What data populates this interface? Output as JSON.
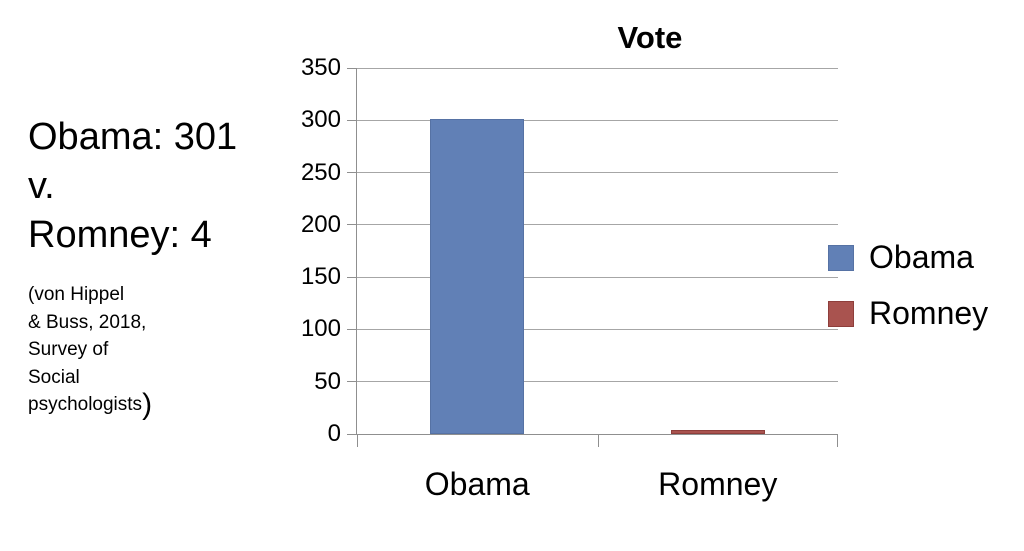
{
  "annotation": {
    "headline_lines": [
      "Obama: 301",
      "v.",
      "Romney: 4"
    ],
    "citation_lines": [
      "(von Hippel",
      "& Buss, 2018,",
      "Survey of",
      "Social",
      "psychologists"
    ],
    "closing_paren": ")"
  },
  "chart_data": {
    "type": "bar",
    "title": "Vote",
    "categories": [
      "Obama",
      "Romney"
    ],
    "values": [
      301,
      4
    ],
    "series": [
      {
        "name": "Obama",
        "value": 301,
        "fill": "#6180b6",
        "border": "#5672a4"
      },
      {
        "name": "Romney",
        "value": 4,
        "fill": "#a9534f",
        "border": "#8e3e3b"
      }
    ],
    "xlabel": "",
    "ylabel": "",
    "ylim": [
      0,
      350
    ],
    "yticks": [
      0,
      50,
      100,
      150,
      200,
      250,
      300,
      350
    ],
    "grid": true,
    "legend_position": "right"
  },
  "colors": {
    "gridline": "#a6a6a6",
    "axis": "#8f8f8f",
    "text": "#000000",
    "obama_blue": "#6180b6",
    "romney_red": "#a9534f"
  }
}
